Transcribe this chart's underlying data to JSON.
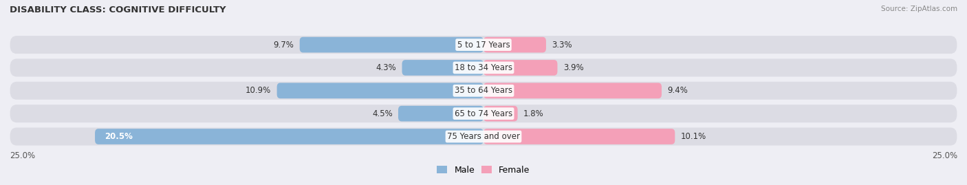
{
  "title": "DISABILITY CLASS: COGNITIVE DIFFICULTY",
  "source": "Source: ZipAtlas.com",
  "categories": [
    "5 to 17 Years",
    "18 to 34 Years",
    "35 to 64 Years",
    "65 to 74 Years",
    "75 Years and over"
  ],
  "male_values": [
    9.7,
    4.3,
    10.9,
    4.5,
    20.5
  ],
  "female_values": [
    3.3,
    3.9,
    9.4,
    1.8,
    10.1
  ],
  "max_val": 25.0,
  "male_color": "#8ab4d8",
  "female_color": "#f4a0b8",
  "bar_bg": "#e2e2e8",
  "bar_height": 0.68,
  "label_fontsize": 8.5,
  "title_fontsize": 9.5,
  "legend_fontsize": 9,
  "axis_label_fontsize": 8.5,
  "value_inside_threshold": 15.0,
  "row_bg_color": "#dcdce4"
}
